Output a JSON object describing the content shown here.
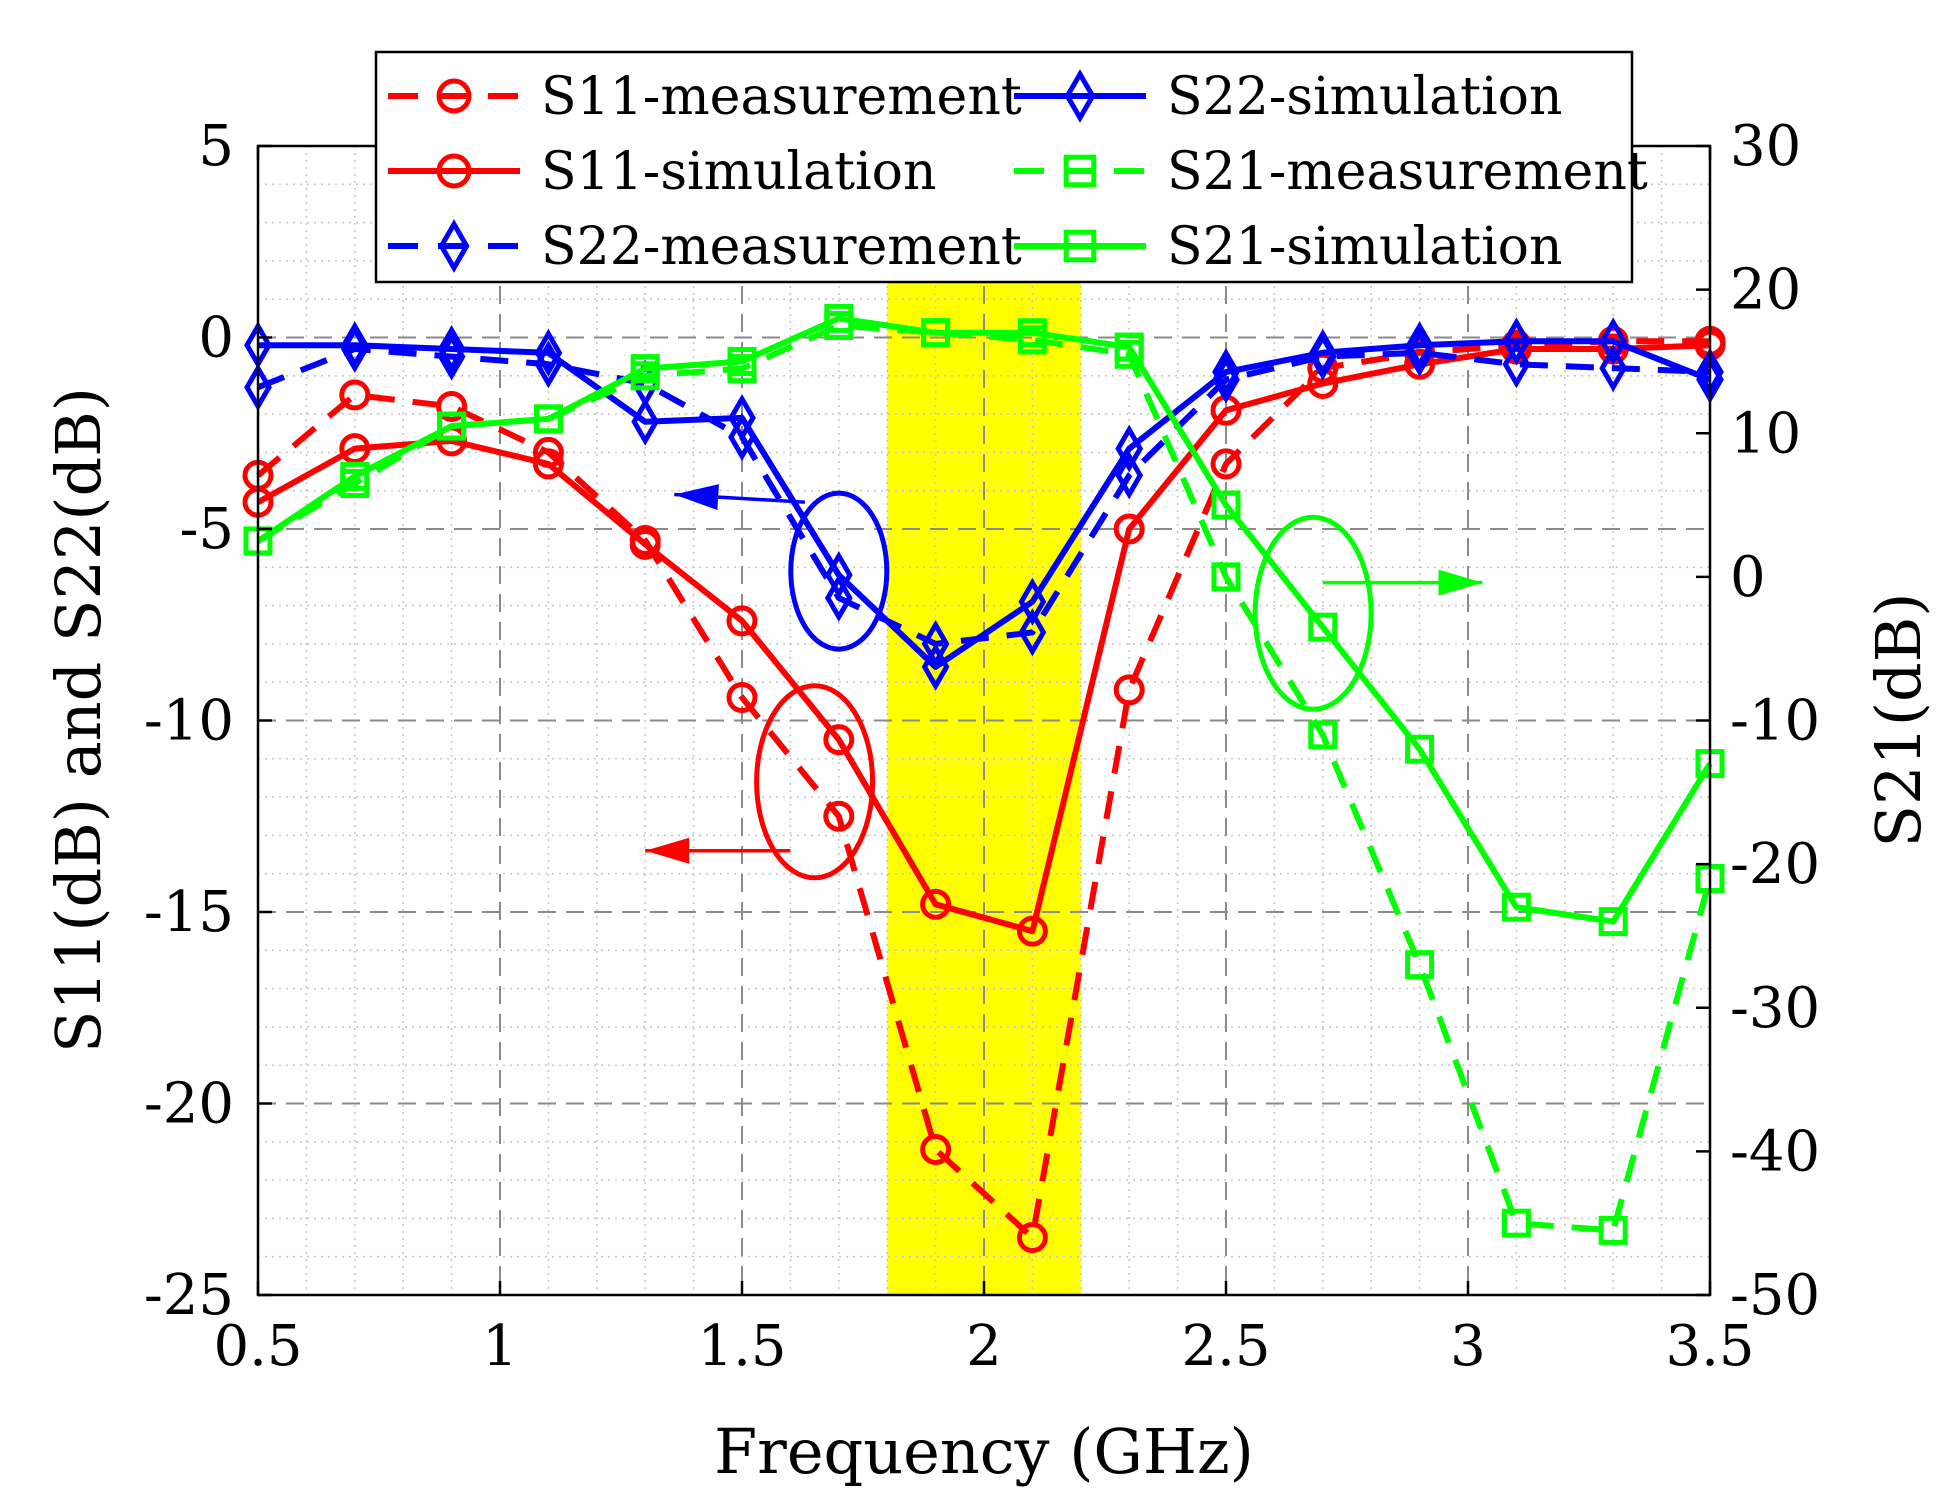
{
  "chart_data": {
    "type": "line",
    "xlabel": "Frequency (GHz)",
    "ylabel": "S11(dB) and S22(dB)",
    "ylabel_right": "S21(dB)",
    "xlim": [
      0.5,
      3.5
    ],
    "ylim": [
      -25,
      5
    ],
    "ylim_right": [
      -50,
      30
    ],
    "xticks": [
      0.5,
      1,
      1.5,
      2,
      2.5,
      3,
      3.5
    ],
    "xtick_labels": [
      "0.5",
      "1",
      "1.5",
      "2",
      "2.5",
      "3",
      "3.5"
    ],
    "yticks": [
      5,
      0,
      -5,
      -10,
      -15,
      -20,
      -25
    ],
    "ytick_labels": [
      "5",
      "0",
      "-5",
      "-10",
      "-15",
      "-20",
      "-25"
    ],
    "yticks_right": [
      30,
      20,
      10,
      0,
      -10,
      -20,
      -30,
      -40,
      -50
    ],
    "ytick_labels_right": [
      "30",
      "20",
      "10",
      "0",
      "-10",
      "-20",
      "-30",
      "-40",
      "-50"
    ],
    "grid": true,
    "legend_position": "top",
    "highlight_band": {
      "x_from": 1.8,
      "x_to": 2.2,
      "color": "#ffff00"
    },
    "series": [
      {
        "name": "S11-measurement",
        "axis": "left",
        "color": "#ff0000",
        "style": "dashed",
        "marker": "circle",
        "x": [
          0.5,
          0.7,
          0.9,
          1.1,
          1.3,
          1.5,
          1.7,
          1.9,
          2.1,
          2.3,
          2.5,
          2.7,
          2.9,
          3.1,
          3.3,
          3.5
        ],
        "y": [
          -3.6,
          -1.5,
          -1.8,
          -3.0,
          -5.3,
          -9.4,
          -12.5,
          -21.2,
          -23.5,
          -9.2,
          -3.3,
          -0.8,
          -0.4,
          -0.2,
          -0.1,
          -0.1
        ]
      },
      {
        "name": "S11-simulation",
        "axis": "left",
        "color": "#ff0000",
        "style": "solid",
        "marker": "circle",
        "x": [
          0.5,
          0.7,
          0.9,
          1.1,
          1.3,
          1.5,
          1.7,
          1.9,
          2.1,
          2.3,
          2.5,
          2.7,
          2.9,
          3.1,
          3.3,
          3.5
        ],
        "y": [
          -4.3,
          -2.9,
          -2.7,
          -3.3,
          -5.4,
          -7.4,
          -10.5,
          -14.8,
          -15.5,
          -5.0,
          -1.9,
          -1.2,
          -0.7,
          -0.3,
          -0.3,
          -0.2
        ]
      },
      {
        "name": "S22-measurement",
        "axis": "left",
        "color": "#0000ff",
        "style": "dashed",
        "marker": "diamond",
        "x": [
          0.5,
          0.7,
          0.9,
          1.1,
          1.3,
          1.5,
          1.7,
          1.9,
          2.1,
          2.3,
          2.5,
          2.7,
          2.9,
          3.1,
          3.3,
          3.5
        ],
        "y": [
          -1.3,
          -0.3,
          -0.5,
          -0.7,
          -1.2,
          -2.6,
          -6.8,
          -8.0,
          -7.7,
          -3.6,
          -1.1,
          -0.5,
          -0.4,
          -0.7,
          -0.8,
          -0.9
        ]
      },
      {
        "name": "S22-simulation",
        "axis": "left",
        "color": "#0000ff",
        "style": "solid",
        "marker": "diamond",
        "x": [
          0.5,
          0.7,
          0.9,
          1.1,
          1.3,
          1.5,
          1.7,
          1.9,
          2.1,
          2.3,
          2.5,
          2.7,
          2.9,
          3.1,
          3.3,
          3.5
        ],
        "y": [
          -0.2,
          -0.2,
          -0.3,
          -0.4,
          -2.2,
          -2.1,
          -6.2,
          -8.6,
          -6.9,
          -2.9,
          -0.9,
          -0.4,
          -0.2,
          -0.1,
          -0.1,
          -1.1
        ]
      },
      {
        "name": "S21-measurement",
        "axis": "right",
        "color": "#00ff00",
        "style": "dashed",
        "marker": "square",
        "x": [
          0.5,
          0.7,
          0.9,
          1.1,
          1.3,
          1.5,
          1.7,
          1.9,
          2.1,
          2.3,
          2.5,
          2.7,
          2.9,
          3.1,
          3.3,
          3.5
        ],
        "y": [
          2.5,
          6.5,
          10.5,
          11.0,
          14.0,
          14.5,
          17.5,
          17.0,
          16.5,
          15.5,
          0.0,
          -11.0,
          -27.0,
          -45.0,
          -45.5,
          -21.0
        ]
      },
      {
        "name": "S21-simulation",
        "axis": "right",
        "color": "#00ff00",
        "style": "solid",
        "marker": "square",
        "x": [
          0.5,
          0.7,
          0.9,
          1.1,
          1.3,
          1.5,
          1.7,
          1.9,
          2.1,
          2.3,
          2.5,
          2.7,
          2.9,
          3.1,
          3.3,
          3.5
        ],
        "y": [
          2.5,
          7.0,
          10.5,
          11.0,
          14.5,
          15.0,
          18.0,
          17.0,
          17.0,
          16.0,
          5.0,
          -3.5,
          -12.0,
          -23.0,
          -24.0,
          -13.0
        ]
      }
    ],
    "annotations": [
      {
        "name": "s22-left-axis-marker",
        "color": "#0000ff",
        "ellipse_center": [
          1.7,
          -6.1
        ],
        "arrow_from": [
          1.63,
          -4.3
        ],
        "arrow_to": [
          1.36,
          -4.1
        ],
        "axis": "left"
      },
      {
        "name": "s11-left-axis-marker",
        "color": "#ff0000",
        "ellipse_center": [
          1.65,
          -11.6
        ],
        "arrow_from": [
          1.6,
          -13.4
        ],
        "arrow_to": [
          1.3,
          -13.4
        ],
        "axis": "left"
      },
      {
        "name": "s21-right-axis-marker",
        "color": "#00ff00",
        "ellipse_center": [
          2.68,
          -7.2
        ],
        "arrow_from": [
          2.7,
          -6.4
        ],
        "arrow_to": [
          3.03,
          -6.4
        ],
        "axis": "left"
      }
    ]
  }
}
